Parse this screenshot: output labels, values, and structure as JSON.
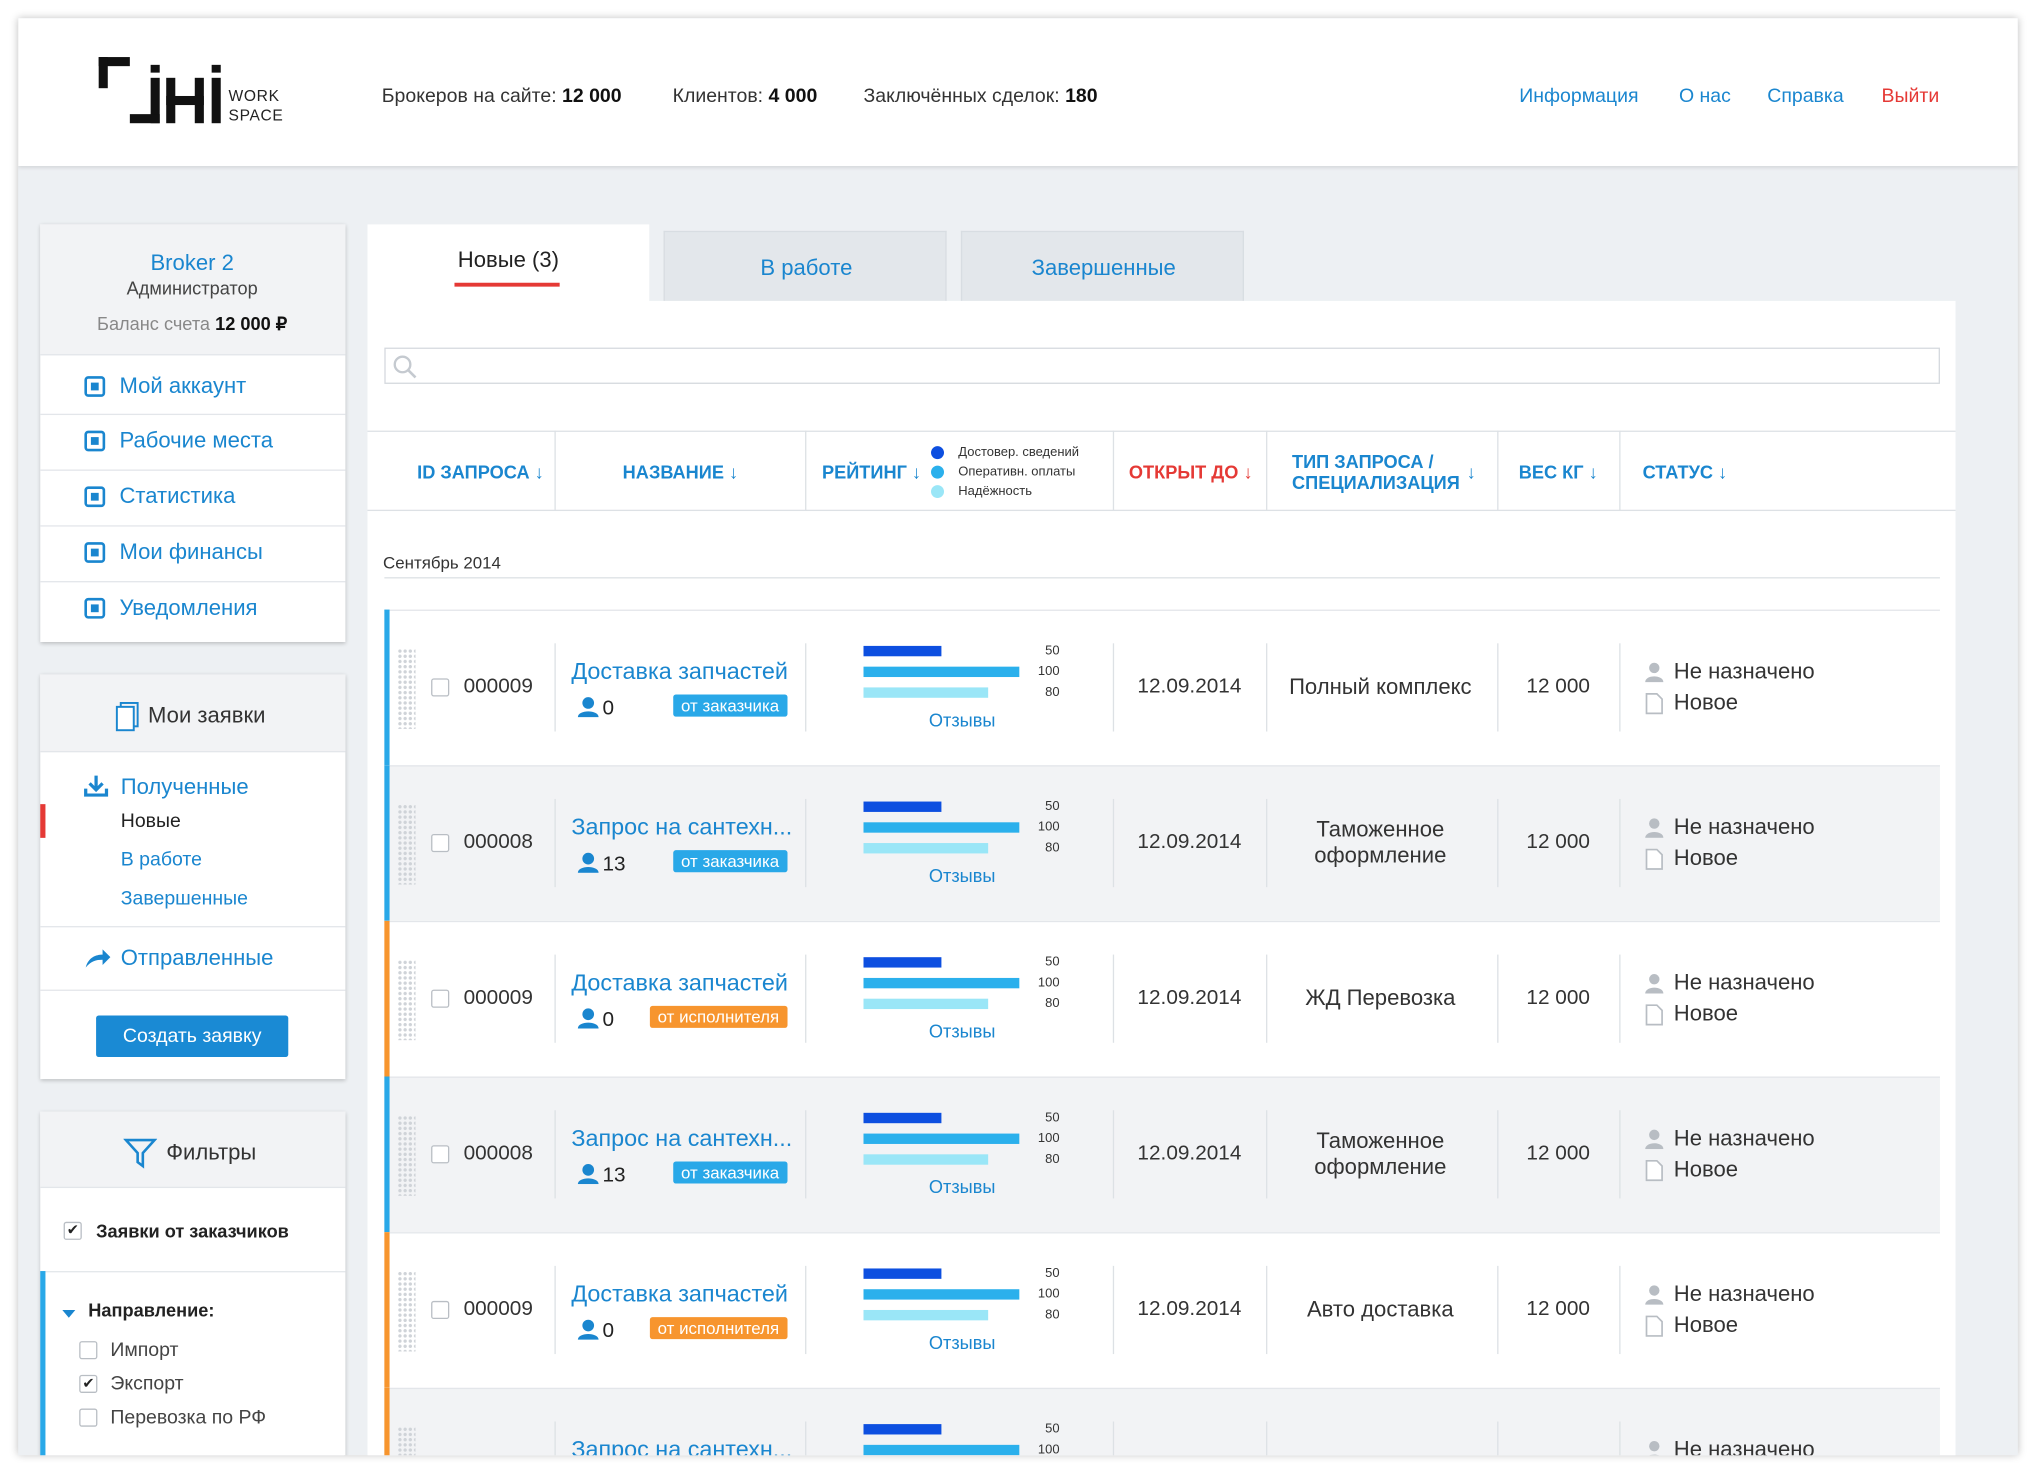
{
  "header": {
    "logo": [
      "WORK",
      "SPACE"
    ],
    "stats": [
      {
        "label": "Брокеров на сайте:",
        "value": "12 000"
      },
      {
        "label": "Клиентов:",
        "value": "4 000"
      },
      {
        "label": "Заключённых сделок:",
        "value": "180"
      }
    ],
    "nav": [
      "Информация",
      "О нас",
      "Справка",
      "Выйти"
    ]
  },
  "profile": {
    "name": "Broker 2",
    "role": "Администратор",
    "balance_label": "Баланс счета",
    "balance": "12 000 ₽"
  },
  "menu": [
    "Мой аккаунт",
    "Рабочие места",
    "Статистика",
    "Мои финансы",
    "Уведомления"
  ],
  "requests": {
    "title": "Мои заявки",
    "received": "Полученные",
    "received_items": [
      "Новые",
      "В работе",
      "Завершенные"
    ],
    "sent": "Отправленные",
    "create_button": "Создать заявку"
  },
  "filters": {
    "title": "Фильтры",
    "from_customers": {
      "label": "Заявки от заказчиков",
      "checked": true
    },
    "direction": "Направление:",
    "options": [
      {
        "label": "Импорт",
        "checked": false
      },
      {
        "label": "Экспорт",
        "checked": true
      },
      {
        "label": "Перевозка по РФ",
        "checked": false
      }
    ]
  },
  "tabs": [
    "Новые (3)",
    "В работе",
    "Завершенные"
  ],
  "table": {
    "columns": [
      {
        "label": "ID ЗАПРОСА",
        "arrow": "↓"
      },
      {
        "label": "НАЗВАНИЕ",
        "arrow": "↓"
      },
      {
        "label": "РЕЙТИНГ",
        "arrow": "↓"
      },
      {
        "label": "ОТКРЫТ ДО",
        "arrow": "↓"
      },
      {
        "label": "ТИП ЗАПРОСА / СПЕЦИАЛИЗАЦИЯ",
        "arrow": "↓"
      },
      {
        "label": "ВЕС КГ",
        "arrow": "↓"
      },
      {
        "label": "СТАТУС",
        "arrow": "↓"
      }
    ],
    "sorted_by": 3,
    "rating_legend": [
      {
        "label": "Достовер. сведений",
        "color": "#0d4fe0"
      },
      {
        "label": "Оперативн. оплаты",
        "color": "#2bb0ec"
      },
      {
        "label": "Надёжность",
        "color": "#9ae6f7"
      }
    ],
    "group": "Сентябрь 2014",
    "rows": [
      {
        "id": "000009",
        "title": "Доставка запчастей",
        "responses": 0,
        "source": "от заказчика",
        "color": "#29a8e8",
        "rating": [
          50,
          100,
          80
        ],
        "reviews": "Отзывы",
        "open_until": "12.09.2014",
        "type": "Полный комплекс",
        "weight": "12 000",
        "assignee": "Не назначено",
        "status": "Новое"
      },
      {
        "id": "000008",
        "title": "Запрос на сантехн...",
        "responses": 13,
        "source": "от заказчика",
        "color": "#29a8e8",
        "rating": [
          50,
          100,
          80
        ],
        "reviews": "Отзывы",
        "open_until": "12.09.2014",
        "type": "Таможенное оформление",
        "weight": "12 000",
        "assignee": "Не назначено",
        "status": "Новое"
      },
      {
        "id": "000009",
        "title": "Доставка запчастей",
        "responses": 0,
        "source": "от исполнителя",
        "color": "#f7952e",
        "rating": [
          50,
          100,
          80
        ],
        "reviews": "Отзывы",
        "open_until": "12.09.2014",
        "type": "ЖД Перевозка",
        "weight": "12 000",
        "assignee": "Не назначено",
        "status": "Новое"
      },
      {
        "id": "000008",
        "title": "Запрос на сантехн...",
        "responses": 13,
        "source": "от заказчика",
        "color": "#29a8e8",
        "rating": [
          50,
          100,
          80
        ],
        "reviews": "Отзывы",
        "open_until": "12.09.2014",
        "type": "Таможенное оформление",
        "weight": "12 000",
        "assignee": "Не назначено",
        "status": "Новое"
      },
      {
        "id": "000009",
        "title": "Доставка запчастей",
        "responses": 0,
        "source": "от исполнителя",
        "color": "#f7952e",
        "rating": [
          50,
          100,
          80
        ],
        "reviews": "Отзывы",
        "open_until": "12.09.2014",
        "type": "Авто доставка",
        "weight": "12 000",
        "assignee": "Не назначено",
        "status": "Новое"
      },
      {
        "title": "Запрос на сантехн...",
        "color": "#f7952e",
        "rating": [
          50,
          100
        ],
        "assignee": "Не назначено"
      }
    ]
  }
}
